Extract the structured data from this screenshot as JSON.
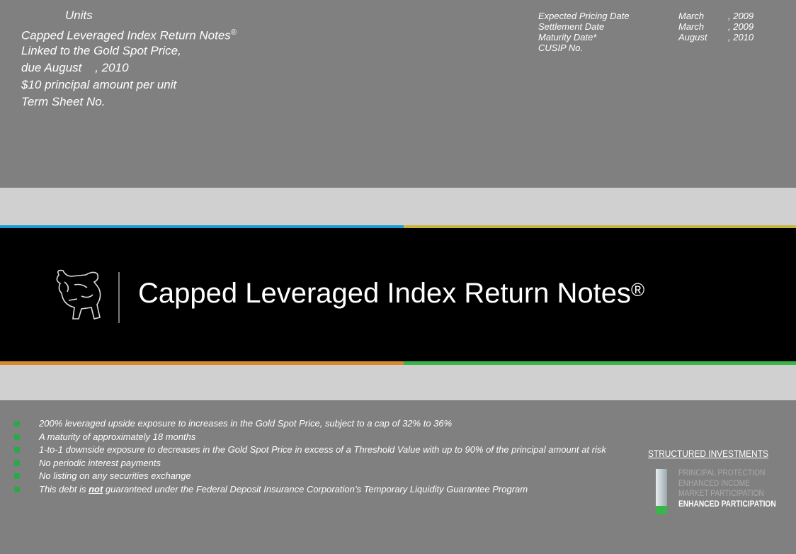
{
  "header": {
    "units": "Units",
    "title_line": {
      "text": "Capped Leveraged Index Return Notes",
      "mark": "®"
    },
    "lines": [
      "Linked to the Gold Spot Price,",
      "due August    , 2010",
      "$10 principal amount per unit",
      "Term Sheet No."
    ],
    "dates": [
      {
        "label": "Expected Pricing Date",
        "month": "March",
        "year": ", 2009"
      },
      {
        "label": "Settlement Date",
        "month": "March",
        "year": ", 2009"
      },
      {
        "label": "Maturity Date*",
        "month": "August",
        "year": ", 2010"
      },
      {
        "label": "CUSIP No."
      }
    ]
  },
  "banner": {
    "title": "Capped Leveraged Index Return Notes",
    "mark": "®"
  },
  "bullets": [
    "200% leveraged upside exposure to increases in the Gold Spot Price, subject to a cap of 32% to 36%",
    "A maturity of approximately 18 months",
    "1-to-1 downside exposure to decreases in the Gold Spot Price in excess of a Threshold Value with up to 90% of the principal amount at risk",
    "No periodic interest payments",
    "No listing on any securities exchange"
  ],
  "last_bullet": {
    "before": "This debt is ",
    "emphasis": "not",
    "after": " guaranteed under the Federal Deposit Insurance Corporation’s Temporary Liquidity Guarantee Program"
  },
  "logo": {
    "heading": "STRUCTURED INVESTMENTS",
    "items": [
      "PRINCIPAL PROTECTION",
      "ENHANCED INCOME",
      "MARKET PARTICIPATION",
      "ENHANCED PARTICIPATION"
    ]
  }
}
